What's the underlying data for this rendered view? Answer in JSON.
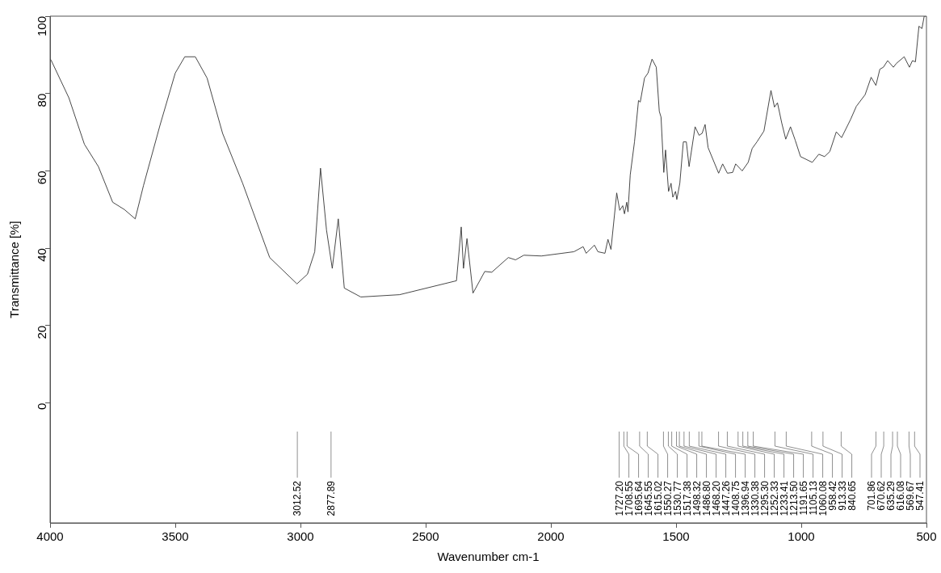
{
  "chart_data": {
    "type": "line",
    "xlabel": "Wavenumber cm-1",
    "ylabel": "Transmittance [%]",
    "xlim": [
      4000,
      500
    ],
    "xticks": [
      4000,
      3500,
      3000,
      2500,
      2000,
      1500,
      1000,
      500
    ],
    "ylim": [
      -31,
      100
    ],
    "yticks": [
      0,
      20,
      40,
      60,
      80,
      100
    ],
    "grid": false,
    "legend": false,
    "marker": "none",
    "line_style": "solid",
    "series": [
      {
        "color": "#333333",
        "x": [
          4000,
          3995,
          3925,
          3863,
          3807,
          3750,
          3703,
          3660,
          3627,
          3561,
          3500,
          3462,
          3420,
          3373,
          3311,
          3231,
          3123,
          3014,
          2972,
          2943,
          2920,
          2896,
          2873,
          2849,
          2825,
          2759,
          2604,
          2377,
          2358,
          2349,
          2335,
          2311,
          2264,
          2236,
          2170,
          2141,
          2108,
          2038,
          1955,
          1908,
          1871,
          1859,
          1826,
          1812,
          1784,
          1772,
          1760,
          1737,
          1725,
          1713,
          1706,
          1697,
          1692,
          1683,
          1666,
          1650,
          1643,
          1626,
          1612,
          1596,
          1579,
          1567,
          1560,
          1549,
          1542,
          1530,
          1520,
          1513,
          1502,
          1497,
          1485,
          1471,
          1459,
          1448,
          1424,
          1408,
          1396,
          1384,
          1372,
          1330,
          1314,
          1295,
          1274,
          1262,
          1236,
          1212,
          1196,
          1177,
          1149,
          1121,
          1107,
          1095,
          1078,
          1062,
          1043,
          1024,
          1003,
          956,
          930,
          907,
          886,
          860,
          839,
          803,
          780,
          745,
          721,
          702,
          686,
          672,
          655,
          632,
          620,
          589,
          568,
          556,
          544,
          530,
          518,
          509,
          500
        ],
        "values": [
          89,
          88.5,
          78.9,
          66.9,
          61.1,
          51.9,
          50,
          47.6,
          56.2,
          71.8,
          85.3,
          89.5,
          89.5,
          84,
          69.7,
          56.8,
          37.6,
          30.8,
          33.3,
          39.1,
          60.7,
          44.7,
          34.8,
          47.6,
          29.7,
          27.4,
          28,
          31.6,
          45.5,
          34.8,
          42.5,
          28.4,
          34,
          33.8,
          37.6,
          37,
          38.2,
          38,
          38.7,
          39.1,
          40.4,
          38.7,
          40.8,
          39.1,
          38.7,
          42.3,
          39.7,
          54.3,
          49.8,
          51,
          48.9,
          51.9,
          49.4,
          59,
          67.5,
          78.2,
          77.8,
          84,
          85.3,
          88.9,
          86.8,
          75.4,
          73.9,
          59.6,
          65.4,
          54.7,
          56.8,
          53.2,
          54.7,
          52.6,
          56.8,
          67.5,
          67.5,
          61.1,
          71.4,
          69.2,
          69.7,
          72,
          66,
          59.4,
          61.8,
          59.4,
          59.6,
          61.8,
          60,
          62.2,
          65.8,
          67.5,
          70.3,
          80.8,
          76.5,
          77.6,
          72.4,
          68.2,
          71.4,
          67.9,
          63.7,
          62.2,
          64.3,
          63.7,
          65,
          70.1,
          68.6,
          73.3,
          76.7,
          79.7,
          84.2,
          82.1,
          86.3,
          86.8,
          88.5,
          86.8,
          87.8,
          89.5,
          86.8,
          88.5,
          88.2,
          97.4,
          96.8,
          100,
          100
        ]
      }
    ],
    "annotations": [
      {
        "text": "3012.52",
        "x": 3012.52
      },
      {
        "text": "2877.89",
        "x": 2877.89
      },
      {
        "text": "1727.20",
        "x": 1727.2
      },
      {
        "text": "1708.55",
        "x": 1708.55
      },
      {
        "text": "1695.64",
        "x": 1695.64
      },
      {
        "text": "1645.55",
        "x": 1645.55
      },
      {
        "text": "1615.02",
        "x": 1615.02
      },
      {
        "text": "1550.27",
        "x": 1550.27
      },
      {
        "text": "1530.77",
        "x": 1530.77
      },
      {
        "text": "1517.38",
        "x": 1517.38
      },
      {
        "text": "1498.32",
        "x": 1498.32
      },
      {
        "text": "1486.80",
        "x": 1486.8
      },
      {
        "text": "1468.20",
        "x": 1468.2
      },
      {
        "text": "1447.26",
        "x": 1447.26
      },
      {
        "text": "1408.75",
        "x": 1408.75
      },
      {
        "text": "1396.94",
        "x": 1396.94
      },
      {
        "text": "1330.38",
        "x": 1330.38
      },
      {
        "text": "1295.30",
        "x": 1295.3
      },
      {
        "text": "1252.33",
        "x": 1252.33
      },
      {
        "text": "1233.41",
        "x": 1233.41
      },
      {
        "text": "1213.50",
        "x": 1213.5
      },
      {
        "text": "1191.65",
        "x": 1191.65
      },
      {
        "text": "1105.13",
        "x": 1105.13
      },
      {
        "text": "1060.08",
        "x": 1060.08
      },
      {
        "text": "958.42",
        "x": 958.42
      },
      {
        "text": "913.33",
        "x": 913.33
      },
      {
        "text": "840.65",
        "x": 840.65
      },
      {
        "text": "701.86",
        "x": 701.86
      },
      {
        "text": "670.62",
        "x": 670.62
      },
      {
        "text": "635.29",
        "x": 635.29
      },
      {
        "text": "616.08",
        "x": 616.08
      },
      {
        "text": "569.67",
        "x": 569.67
      },
      {
        "text": "547.41",
        "x": 547.41
      }
    ]
  }
}
